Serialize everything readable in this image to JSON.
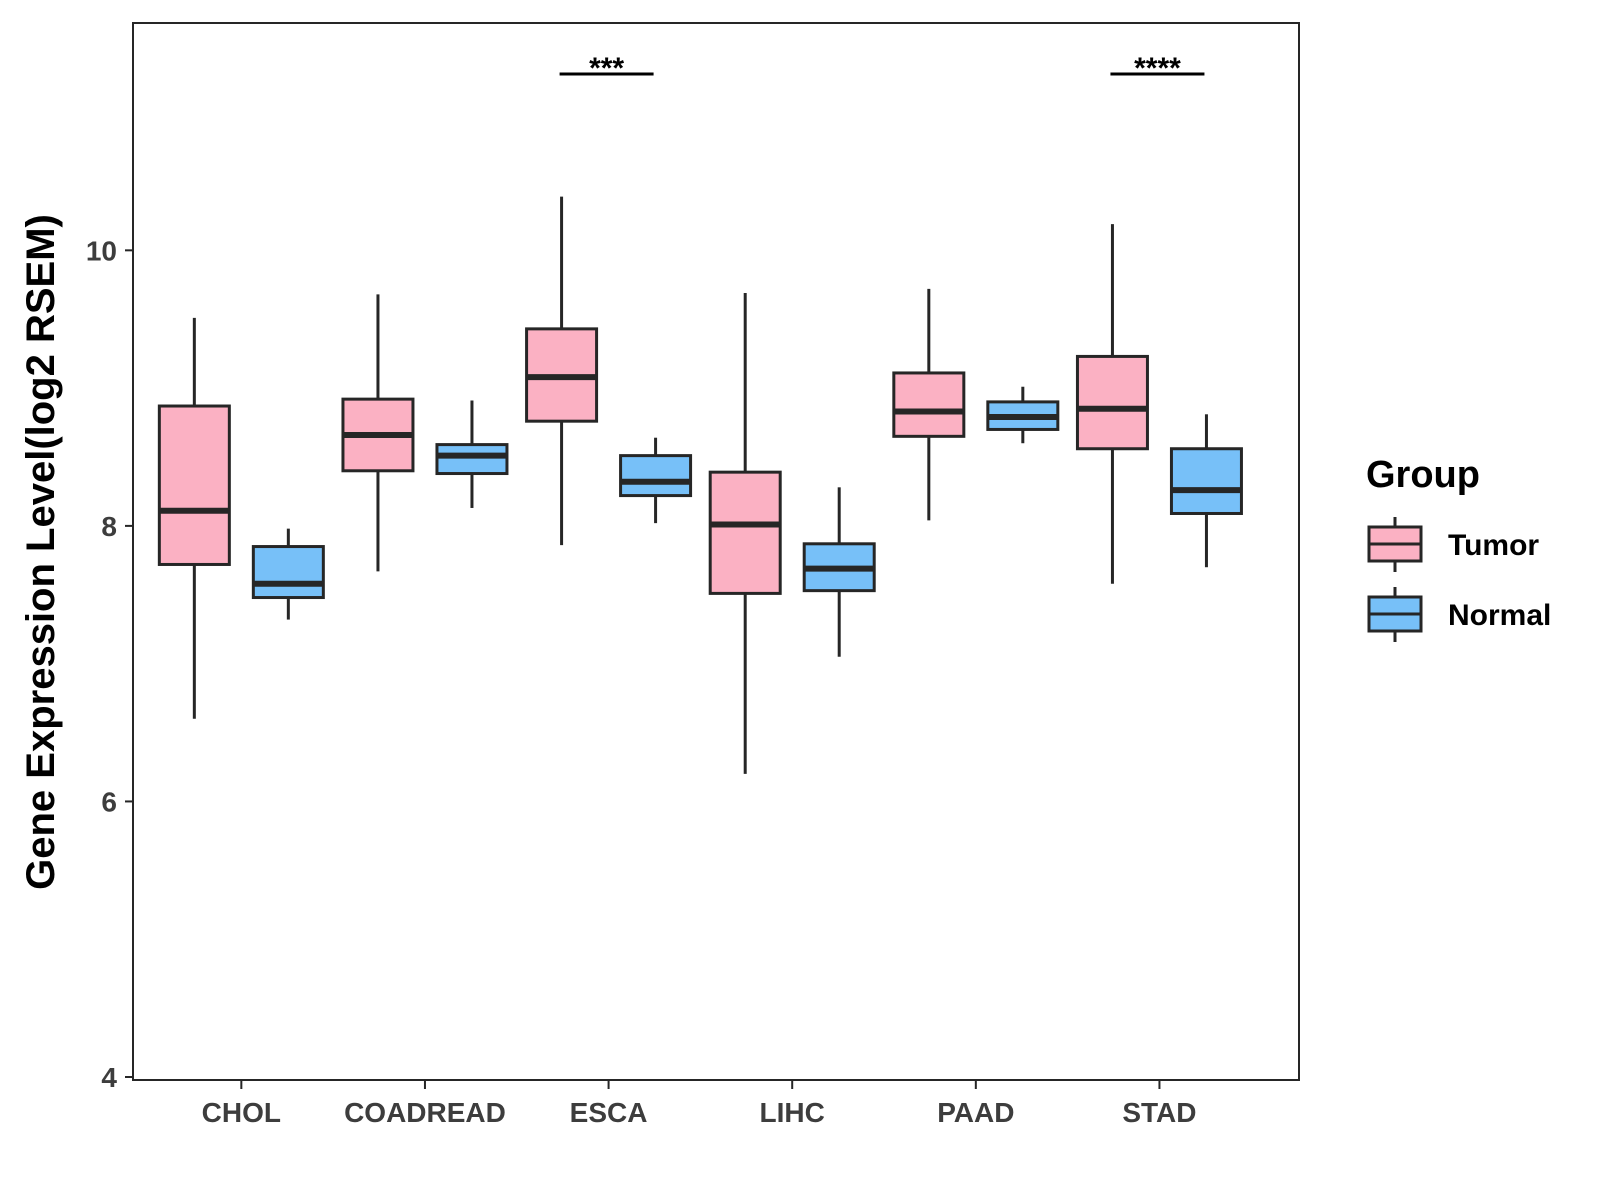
{
  "chart_data": {
    "type": "boxplot",
    "title": "",
    "xlabel": "",
    "ylabel": "Gene Expression Level(log2 RSEM)",
    "ylim": [
      4,
      11.65
    ],
    "yticks": [
      4,
      6,
      8,
      10
    ],
    "grid": false,
    "legend": {
      "title": "Group",
      "placement": "right",
      "entries": [
        "Tumor",
        "Normal"
      ]
    },
    "colors": {
      "Tumor": "#fbb1c3",
      "Normal": "#77c0f8",
      "outline": "#262626"
    },
    "categories": [
      "CHOL",
      "COADREAD",
      "ESCA",
      "LIHC",
      "PAAD",
      "STAD"
    ],
    "series": [
      {
        "name": "Tumor",
        "boxes": [
          {
            "min": 6.6,
            "q1": 7.72,
            "median": 8.11,
            "q3": 8.87,
            "max": 9.51
          },
          {
            "min": 7.67,
            "q1": 8.4,
            "median": 8.66,
            "q3": 8.92,
            "max": 9.68
          },
          {
            "min": 7.86,
            "q1": 8.76,
            "median": 9.08,
            "q3": 9.43,
            "max": 10.39
          },
          {
            "min": 6.2,
            "q1": 7.51,
            "median": 8.01,
            "q3": 8.39,
            "max": 9.69
          },
          {
            "min": 8.04,
            "q1": 8.65,
            "median": 8.83,
            "q3": 9.11,
            "max": 9.72
          },
          {
            "min": 7.58,
            "q1": 8.56,
            "median": 8.85,
            "q3": 9.23,
            "max": 10.19
          }
        ]
      },
      {
        "name": "Normal",
        "boxes": [
          {
            "min": 7.32,
            "q1": 7.48,
            "median": 7.58,
            "q3": 7.85,
            "max": 7.98
          },
          {
            "min": 8.13,
            "q1": 8.38,
            "median": 8.51,
            "q3": 8.59,
            "max": 8.91
          },
          {
            "min": 8.02,
            "q1": 8.22,
            "median": 8.32,
            "q3": 8.51,
            "max": 8.64
          },
          {
            "min": 7.05,
            "q1": 7.53,
            "median": 7.69,
            "q3": 7.87,
            "max": 8.28
          },
          {
            "min": 8.6,
            "q1": 8.7,
            "median": 8.79,
            "q3": 8.9,
            "max": 9.01
          },
          {
            "min": 7.7,
            "q1": 8.09,
            "median": 8.26,
            "q3": 8.56,
            "max": 8.81
          }
        ]
      }
    ],
    "annotations": [
      {
        "category": "ESCA",
        "label": "***"
      },
      {
        "category": "STAD",
        "label": "****"
      }
    ]
  }
}
